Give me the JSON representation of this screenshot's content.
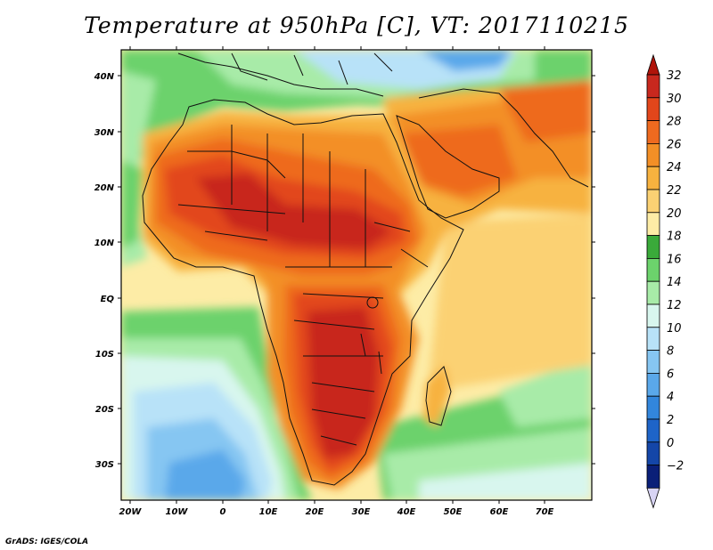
{
  "title": "Temperature at 950hPa [C], VT: 2017110215",
  "credit": "GrADS: IGES/COLA",
  "axes": {
    "lat_labels": [
      "40N",
      "30N",
      "20N",
      "10N",
      "EQ",
      "10S",
      "20S",
      "30S"
    ],
    "lon_labels": [
      "20W",
      "10W",
      "0",
      "10E",
      "20E",
      "30E",
      "40E",
      "50E",
      "60E",
      "70E"
    ]
  },
  "colorbar": {
    "labels": [
      "32",
      "30",
      "28",
      "26",
      "24",
      "22",
      "20",
      "18",
      "16",
      "14",
      "12",
      "10",
      "8",
      "6",
      "4",
      "2",
      "0",
      "−2"
    ],
    "colors": [
      "#c8281e",
      "#e2461b",
      "#ee6a1f",
      "#f38f26",
      "#f7b23f",
      "#fbd173",
      "#fdeca6",
      "#3aaa3a",
      "#6cd26c",
      "#a8eba8",
      "#d8f6ee",
      "#b8e2f8",
      "#86c6f2",
      "#5aa8ea",
      "#3286dc",
      "#1e64c8",
      "#1446a8",
      "#0a1f78"
    ],
    "top_arrow_color": "#b0140a",
    "bottom_arrow_color": "#d8d4f4"
  }
}
